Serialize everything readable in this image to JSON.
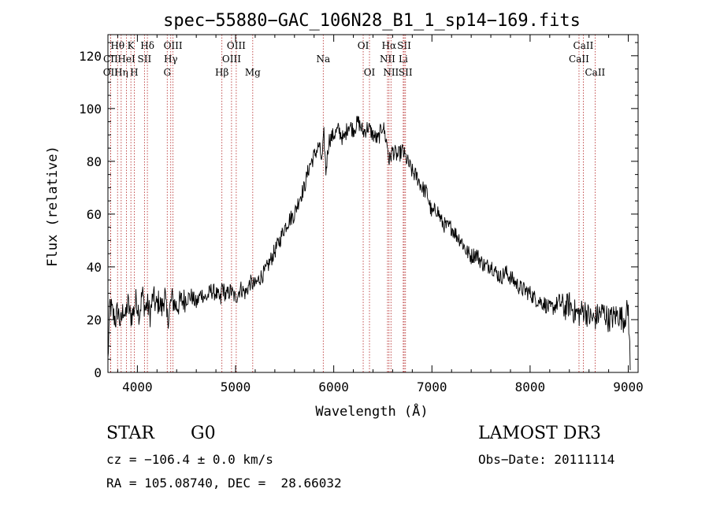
{
  "chart_data": {
    "type": "line",
    "title": "spec−55880−GAC_106N28_B1_1_sp14−169.fits",
    "xlabel": "Wavelength (Å)",
    "ylabel": "Flux (relative)",
    "xlim": [
      3700,
      9100
    ],
    "ylim": [
      0,
      128
    ],
    "xticks": [
      4000,
      5000,
      6000,
      7000,
      8000,
      9000
    ],
    "yticks": [
      0,
      20,
      40,
      60,
      80,
      100,
      120
    ],
    "series": [
      {
        "name": "flux",
        "x": [
          3700,
          3720,
          3750,
          3780,
          3800,
          3830,
          3860,
          3880,
          3900,
          3930,
          3960,
          3990,
          4020,
          4050,
          4080,
          4100,
          4130,
          4160,
          4190,
          4220,
          4250,
          4280,
          4300,
          4320,
          4350,
          4380,
          4400,
          4450,
          4500,
          4550,
          4600,
          4650,
          4700,
          4750,
          4800,
          4850,
          4860,
          4900,
          4950,
          5000,
          5050,
          5100,
          5150,
          5200,
          5250,
          5300,
          5350,
          5400,
          5450,
          5500,
          5550,
          5600,
          5650,
          5700,
          5750,
          5800,
          5850,
          5880,
          5900,
          5920,
          5950,
          6000,
          6050,
          6100,
          6150,
          6200,
          6250,
          6300,
          6350,
          6400,
          6450,
          6500,
          6550,
          6563,
          6600,
          6650,
          6700,
          6750,
          6800,
          6850,
          6900,
          6950,
          7000,
          7050,
          7100,
          7150,
          7200,
          7250,
          7300,
          7350,
          7400,
          7450,
          7500,
          7550,
          7600,
          7650,
          7700,
          7750,
          7800,
          7850,
          7900,
          7950,
          8000,
          8050,
          8100,
          8150,
          8200,
          8250,
          8300,
          8350,
          8400,
          8450,
          8500,
          8550,
          8600,
          8650,
          8700,
          8750,
          8800,
          8850,
          8900,
          8950,
          9000,
          9020
        ],
        "y": [
          4,
          26,
          22,
          20,
          24,
          18,
          25,
          20,
          27,
          21,
          23,
          28,
          22,
          30,
          24,
          26,
          22,
          29,
          25,
          27,
          24,
          30,
          20,
          22,
          28,
          26,
          25,
          27,
          28,
          29,
          26,
          30,
          28,
          31,
          30,
          27,
          33,
          29,
          31,
          28,
          32,
          30,
          34,
          33,
          36,
          38,
          42,
          46,
          50,
          55,
          58,
          60,
          66,
          70,
          78,
          82,
          86,
          80,
          90,
          76,
          88,
          90,
          92,
          88,
          94,
          92,
          95,
          91,
          93,
          90,
          88,
          94,
          85,
          80,
          84,
          82,
          84,
          80,
          76,
          74,
          70,
          68,
          60,
          62,
          57,
          55,
          55,
          52,
          50,
          46,
          44,
          45,
          42,
          40,
          41,
          38,
          36,
          38,
          36,
          34,
          32,
          31,
          30,
          28,
          27,
          26,
          24,
          25,
          27,
          24,
          26,
          23,
          22,
          24,
          21,
          20,
          22,
          23,
          20,
          21,
          22,
          20,
          24,
          3
        ]
      }
    ],
    "lines": [
      {
        "name": "Hθ",
        "wave": 3798,
        "row": 1
      },
      {
        "name": "CII",
        "wave": 3727,
        "row": 2
      },
      {
        "name": "Hη",
        "wave": 3835,
        "row": 3
      },
      {
        "name": "OII",
        "wave": 3727,
        "row": 3
      },
      {
        "name": "K",
        "wave": 3934,
        "row": 1
      },
      {
        "name": "HeI",
        "wave": 3889,
        "row": 2
      },
      {
        "name": "H",
        "wave": 3968,
        "row": 3
      },
      {
        "name": "SII",
        "wave": 4072,
        "row": 2
      },
      {
        "name": "Hδ",
        "wave": 4102,
        "row": 1
      },
      {
        "name": "OIII",
        "wave": 4363,
        "row": 1
      },
      {
        "name": "Hγ",
        "wave": 4340,
        "row": 2
      },
      {
        "name": "G",
        "wave": 4304,
        "row": 3
      },
      {
        "name": "OIII",
        "wave": 5007,
        "row": 1
      },
      {
        "name": "OIII",
        "wave": 4959,
        "row": 2
      },
      {
        "name": "Hβ",
        "wave": 4861,
        "row": 3
      },
      {
        "name": "Mg",
        "wave": 5175,
        "row": 3
      },
      {
        "name": "Na",
        "wave": 5893,
        "row": 2
      },
      {
        "name": "OI",
        "wave": 6300,
        "row": 1
      },
      {
        "name": "OI",
        "wave": 6364,
        "row": 3
      },
      {
        "name": "Hα",
        "wave": 6563,
        "row": 1
      },
      {
        "name": "NII",
        "wave": 6548,
        "row": 2
      },
      {
        "name": "NII",
        "wave": 6583,
        "row": 3
      },
      {
        "name": "SII",
        "wave": 6717,
        "row": 1
      },
      {
        "name": "Li",
        "wave": 6708,
        "row": 2
      },
      {
        "name": "SII",
        "wave": 6731,
        "row": 3
      },
      {
        "name": "CaII",
        "wave": 8542,
        "row": 1
      },
      {
        "name": "CaII",
        "wave": 8498,
        "row": 2
      },
      {
        "name": "CaII",
        "wave": 8662,
        "row": 3
      }
    ]
  },
  "info": {
    "class_label": "STAR",
    "subclass_label": "G0",
    "survey": "LAMOST DR3",
    "cz": "cz = −106.4 ± 0.0 km/s",
    "obs_date": "Obs−Date: 20111114",
    "coords": "RA = 105.08740, DEC =  28.66032"
  }
}
